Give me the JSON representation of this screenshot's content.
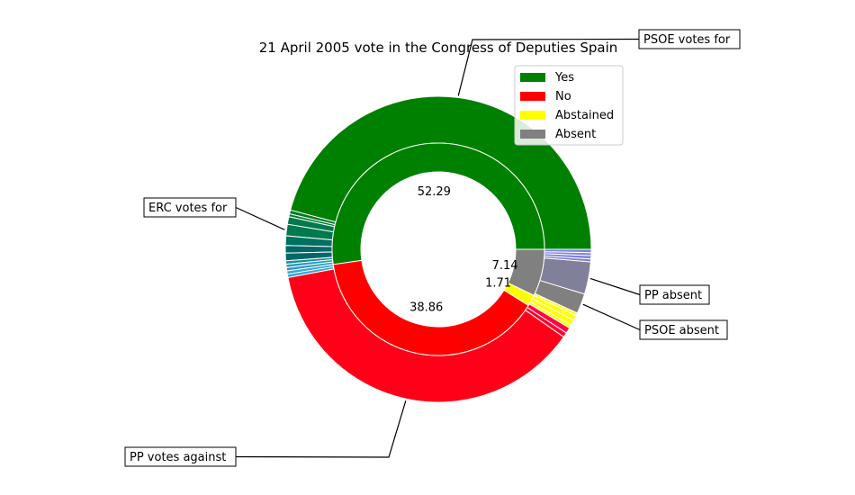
{
  "chart_data": {
    "type": "pie",
    "title": "21 April 2005 vote in the Congress of Deputies Spain",
    "legend_placement": "upper-right",
    "inner_ring": {
      "categories": [
        "Yes",
        "No",
        "Abstained",
        "Absent"
      ],
      "values": [
        52.29,
        38.86,
        1.71,
        7.14
      ],
      "labels": [
        "52.29",
        "38.86",
        "1.71",
        "7.14"
      ],
      "colors": [
        "#008000",
        "#ff0000",
        "#ffff00",
        "#808080"
      ]
    },
    "outer_ring": {
      "values": [
        45.6,
        0.4,
        0.3,
        0.8,
        1.2,
        1.0,
        0.8,
        0.8,
        0.35,
        0.35,
        0.35,
        0.35,
        0.35,
        37.1,
        0.5,
        0.6,
        0.35,
        0.55,
        0.55,
        0.3,
        2.1,
        3.4,
        0.3,
        0.35,
        0.3,
        0.35
      ],
      "colors": [
        "#008000",
        "#007a28",
        "#007a28",
        "#007a4c",
        "#007a4c",
        "#007060",
        "#006868",
        "#006868",
        "#1d8a9c",
        "#2a9cc0",
        "#2a9cc0",
        "#36a8d2",
        "#36a8d2",
        "#ff0018",
        "#ff0030",
        "#ff0048",
        "#ffff00",
        "#ffff00",
        "#ffff10",
        "#ffff20",
        "#808080",
        "#80809a",
        "#8080c8",
        "#8080e0",
        "#8080e8",
        "#8080f0"
      ]
    },
    "annotations": [
      {
        "text": "PSOE votes for",
        "slice_index": 0
      },
      {
        "text": "ERC votes for",
        "slice_index": 4
      },
      {
        "text": "PP votes against",
        "slice_index": 13
      },
      {
        "text": "PSOE absent",
        "slice_index": 20
      },
      {
        "text": "PP absent",
        "slice_index": 21
      }
    ]
  }
}
